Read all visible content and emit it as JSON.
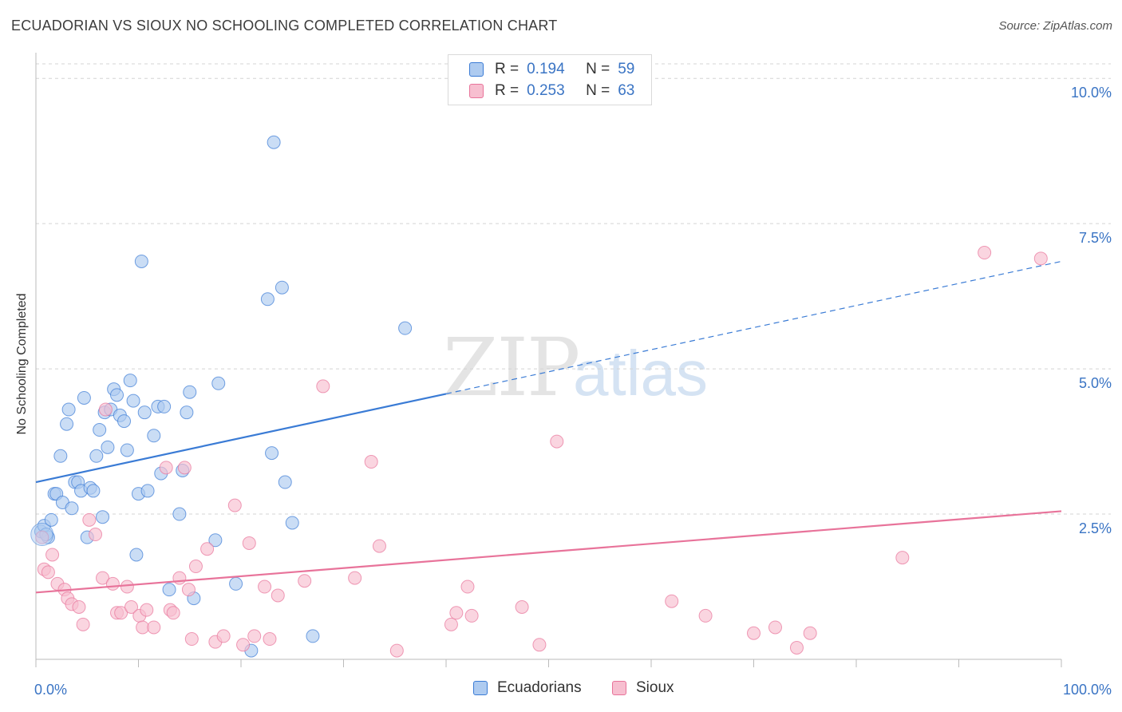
{
  "title": "ECUADORIAN VS SIOUX NO SCHOOLING COMPLETED CORRELATION CHART",
  "source": "Source: ZipAtlas.com",
  "watermark": {
    "zip": "ZIP",
    "atlas": "atlas"
  },
  "legend": {
    "r_label": "R =",
    "n_label": "N =",
    "rows": [
      {
        "r": "0.194",
        "n": "59"
      },
      {
        "r": "0.253",
        "n": "63"
      }
    ]
  },
  "chart_data": {
    "type": "scatter",
    "title": "ECUADORIAN VS SIOUX NO SCHOOLING COMPLETED CORRELATION CHART",
    "ylabel": "No Schooling Completed",
    "xlabel": "",
    "xlim": [
      0,
      100
    ],
    "ylim": [
      0,
      10.25
    ],
    "x_tick_labels": [
      "0.0%",
      "100.0%"
    ],
    "y_ticks": [
      2.5,
      5.0,
      7.5,
      10.0
    ],
    "y_tick_labels": [
      "2.5%",
      "5.0%",
      "7.5%",
      "10.0%"
    ],
    "colors": {
      "ecuadorians": "#3a7bd5",
      "sioux": "#e8739a",
      "ecuadorians_fill": "#aecbf0",
      "sioux_fill": "#f7bfd0",
      "axis_label": "#3a74c4"
    },
    "series": [
      {
        "name": "Ecuadorians",
        "r": 0.194,
        "n": 59,
        "trend": {
          "x0": 0,
          "y0": 3.05,
          "x1": 40,
          "y1": 4.57,
          "dash_x1": 100,
          "dash_y1": 6.85
        },
        "points": [
          [
            0.5,
            2.2
          ],
          [
            0.8,
            2.3
          ],
          [
            1.2,
            2.1
          ],
          [
            1.5,
            2.4
          ],
          [
            1.8,
            2.85
          ],
          [
            2.0,
            2.85
          ],
          [
            2.4,
            3.5
          ],
          [
            2.6,
            2.7
          ],
          [
            3.0,
            4.05
          ],
          [
            3.2,
            4.3
          ],
          [
            3.5,
            2.6
          ],
          [
            3.8,
            3.05
          ],
          [
            4.1,
            3.05
          ],
          [
            4.4,
            2.9
          ],
          [
            4.7,
            4.5
          ],
          [
            5.0,
            2.1
          ],
          [
            5.3,
            2.95
          ],
          [
            5.6,
            2.9
          ],
          [
            5.9,
            3.5
          ],
          [
            6.2,
            3.95
          ],
          [
            6.5,
            2.45
          ],
          [
            6.7,
            4.25
          ],
          [
            7.0,
            3.65
          ],
          [
            7.3,
            4.3
          ],
          [
            7.6,
            4.65
          ],
          [
            7.9,
            4.55
          ],
          [
            8.2,
            4.2
          ],
          [
            8.6,
            4.1
          ],
          [
            8.9,
            3.6
          ],
          [
            9.2,
            4.8
          ],
          [
            9.5,
            4.45
          ],
          [
            9.8,
            1.8
          ],
          [
            10.0,
            2.85
          ],
          [
            10.3,
            6.85
          ],
          [
            10.6,
            4.25
          ],
          [
            10.9,
            2.9
          ],
          [
            11.5,
            3.85
          ],
          [
            11.9,
            4.35
          ],
          [
            12.2,
            3.2
          ],
          [
            12.5,
            4.35
          ],
          [
            13.0,
            1.2
          ],
          [
            14.0,
            2.5
          ],
          [
            14.3,
            3.25
          ],
          [
            14.7,
            4.25
          ],
          [
            15.0,
            4.6
          ],
          [
            15.4,
            1.05
          ],
          [
            17.5,
            2.05
          ],
          [
            17.8,
            4.75
          ],
          [
            19.5,
            1.3
          ],
          [
            21.0,
            0.15
          ],
          [
            22.6,
            6.2
          ],
          [
            23.0,
            3.55
          ],
          [
            23.2,
            8.9
          ],
          [
            24.0,
            6.4
          ],
          [
            24.3,
            3.05
          ],
          [
            25.0,
            2.35
          ],
          [
            27.0,
            0.4
          ],
          [
            36.0,
            5.7
          ],
          [
            1.0,
            2.15
          ]
        ]
      },
      {
        "name": "Sioux",
        "r": 0.253,
        "n": 63,
        "trend": {
          "x0": 0,
          "y0": 1.15,
          "x1": 100,
          "y1": 2.55
        },
        "points": [
          [
            0.6,
            2.1
          ],
          [
            0.8,
            1.55
          ],
          [
            1.2,
            1.5
          ],
          [
            1.6,
            1.8
          ],
          [
            2.1,
            1.3
          ],
          [
            2.8,
            1.2
          ],
          [
            3.1,
            1.05
          ],
          [
            3.5,
            0.95
          ],
          [
            4.2,
            0.9
          ],
          [
            4.6,
            0.6
          ],
          [
            5.2,
            2.4
          ],
          [
            5.8,
            2.15
          ],
          [
            6.5,
            1.4
          ],
          [
            6.8,
            4.3
          ],
          [
            7.5,
            1.3
          ],
          [
            7.9,
            0.8
          ],
          [
            8.3,
            0.8
          ],
          [
            8.9,
            1.25
          ],
          [
            9.3,
            0.9
          ],
          [
            10.1,
            0.75
          ],
          [
            10.4,
            0.55
          ],
          [
            10.8,
            0.85
          ],
          [
            11.5,
            0.55
          ],
          [
            12.7,
            3.3
          ],
          [
            13.1,
            0.85
          ],
          [
            13.4,
            0.8
          ],
          [
            14.0,
            1.4
          ],
          [
            14.5,
            3.3
          ],
          [
            14.9,
            1.2
          ],
          [
            15.2,
            0.35
          ],
          [
            15.6,
            1.6
          ],
          [
            16.7,
            1.9
          ],
          [
            17.5,
            0.3
          ],
          [
            18.3,
            0.4
          ],
          [
            19.4,
            2.65
          ],
          [
            20.2,
            0.25
          ],
          [
            20.8,
            2.0
          ],
          [
            21.3,
            0.4
          ],
          [
            22.3,
            1.25
          ],
          [
            22.8,
            0.35
          ],
          [
            23.6,
            1.1
          ],
          [
            26.2,
            1.35
          ],
          [
            28.0,
            4.7
          ],
          [
            31.1,
            1.4
          ],
          [
            32.7,
            3.4
          ],
          [
            33.5,
            1.95
          ],
          [
            35.2,
            0.15
          ],
          [
            40.5,
            0.6
          ],
          [
            41.0,
            0.8
          ],
          [
            42.1,
            1.25
          ],
          [
            42.5,
            0.75
          ],
          [
            47.4,
            0.9
          ],
          [
            49.1,
            0.25
          ],
          [
            50.8,
            3.75
          ],
          [
            62.0,
            1.0
          ],
          [
            65.3,
            0.75
          ],
          [
            70.0,
            0.45
          ],
          [
            72.1,
            0.55
          ],
          [
            74.2,
            0.2
          ],
          [
            75.5,
            0.45
          ],
          [
            84.5,
            1.75
          ],
          [
            92.5,
            7.0
          ],
          [
            98.0,
            6.9
          ]
        ]
      }
    ]
  }
}
